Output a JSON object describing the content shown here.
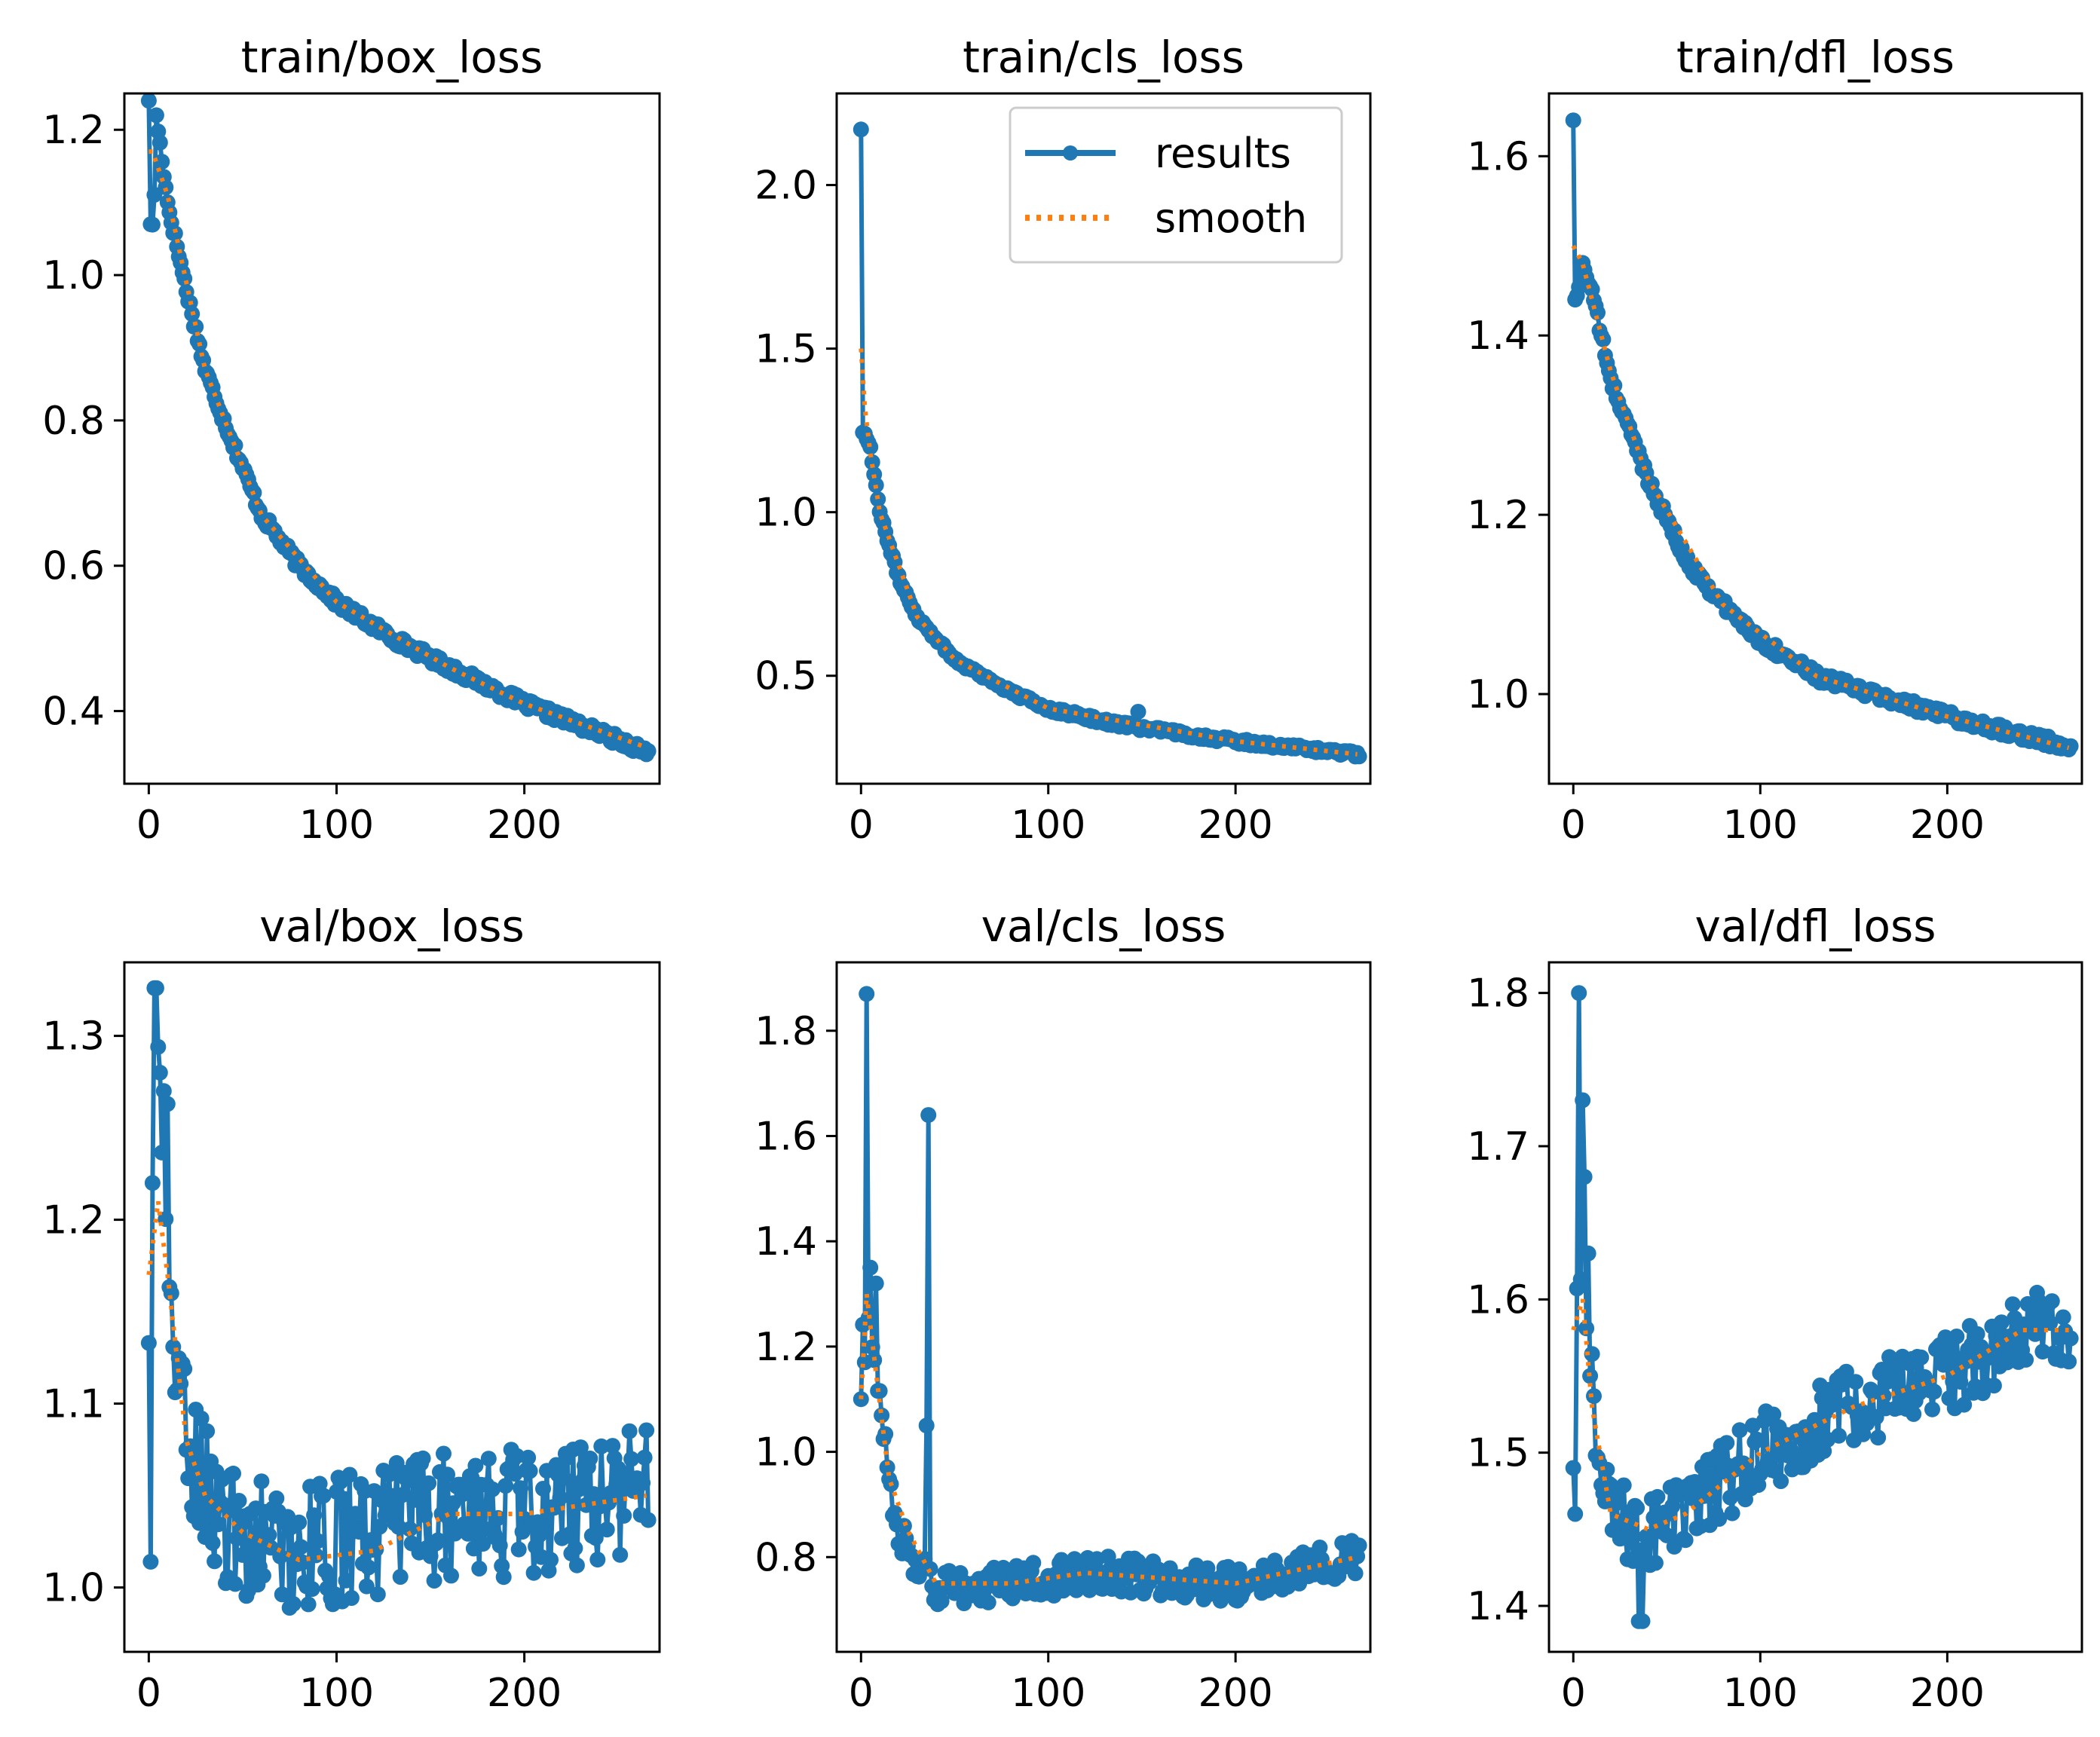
{
  "colors": {
    "results": "#1f77b4",
    "smooth": "#ff7f0e",
    "axes": "#000000",
    "background": "#ffffff",
    "legend_border": "#cccccc"
  },
  "legend": {
    "results_label": "results",
    "smooth_label": "smooth",
    "location": "upper right of train/cls_loss"
  },
  "chart_data": [
    {
      "type": "line",
      "title": "train/box_loss",
      "xlim": [
        -13,
        272
      ],
      "ylim": [
        0.3,
        1.25
      ],
      "xticks": [
        0,
        100,
        200
      ],
      "yticks": [
        0.4,
        0.6,
        0.8,
        1.0,
        1.2
      ],
      "xtick_labels": [
        "0",
        "100",
        "200"
      ],
      "ytick_labels": [
        "0.4",
        "0.6",
        "0.8",
        "1.0",
        "1.2"
      ],
      "key_x": [
        0,
        2,
        5,
        10,
        20,
        30,
        40,
        60,
        80,
        100,
        130,
        160,
        200,
        240,
        265
      ],
      "key_y": [
        1.24,
        1.07,
        1.2,
        1.1,
        0.98,
        0.87,
        0.8,
        0.67,
        0.6,
        0.55,
        0.5,
        0.46,
        0.41,
        0.37,
        0.345
      ],
      "noise": 0.007,
      "spikes": [
        [
          0,
          1.24
        ],
        [
          1,
          1.07
        ],
        [
          4,
          1.22
        ]
      ],
      "smooth_x": [
        2,
        10,
        30,
        60,
        100,
        160,
        200,
        265
      ],
      "smooth_y": [
        1.17,
        1.11,
        0.87,
        0.67,
        0.55,
        0.46,
        0.41,
        0.35
      ]
    },
    {
      "type": "line",
      "title": "train/cls_loss",
      "xlim": [
        -13,
        272
      ],
      "ylim": [
        0.17,
        2.28
      ],
      "xticks": [
        0,
        100,
        200
      ],
      "yticks": [
        0.5,
        1.0,
        1.5,
        2.0
      ],
      "xtick_labels": [
        "0",
        "100",
        "200"
      ],
      "ytick_labels": [
        "0.5",
        "1.0",
        "1.5",
        "2.0"
      ],
      "key_x": [
        0,
        1,
        5,
        10,
        20,
        30,
        50,
        80,
        100,
        130,
        150,
        200,
        265
      ],
      "key_y": [
        2.17,
        1.25,
        1.2,
        1.0,
        0.8,
        0.68,
        0.55,
        0.45,
        0.4,
        0.36,
        0.34,
        0.3,
        0.26
      ],
      "noise": 0.008,
      "spikes": [
        [
          0,
          2.17
        ],
        [
          148,
          0.39
        ]
      ],
      "smooth_x": [
        0,
        2,
        5,
        10,
        30,
        50,
        100,
        200,
        265
      ],
      "smooth_y": [
        1.5,
        1.32,
        1.18,
        1.0,
        0.68,
        0.55,
        0.4,
        0.3,
        0.26
      ]
    },
    {
      "type": "line",
      "title": "train/dfl_loss",
      "xlim": [
        -13,
        272
      ],
      "ylim": [
        0.9,
        1.67
      ],
      "xticks": [
        0,
        100,
        200
      ],
      "yticks": [
        1.0,
        1.2,
        1.4,
        1.6
      ],
      "xtick_labels": [
        "0",
        "100",
        "200"
      ],
      "ytick_labels": [
        "1.0",
        "1.2",
        "1.4",
        "1.6"
      ],
      "key_x": [
        0,
        2,
        5,
        10,
        20,
        40,
        60,
        80,
        100,
        130,
        160,
        200,
        240,
        265
      ],
      "key_y": [
        1.64,
        1.44,
        1.48,
        1.45,
        1.35,
        1.24,
        1.15,
        1.1,
        1.06,
        1.02,
        1.0,
        0.975,
        0.955,
        0.94
      ],
      "noise": 0.006,
      "spikes": [
        [
          0,
          1.64
        ],
        [
          1,
          1.44
        ]
      ],
      "smooth_x": [
        0,
        5,
        20,
        40,
        80,
        130,
        200,
        265
      ],
      "smooth_y": [
        1.5,
        1.48,
        1.36,
        1.24,
        1.1,
        1.02,
        0.975,
        0.94
      ]
    },
    {
      "type": "line",
      "title": "val/box_loss",
      "xlim": [
        -13,
        272
      ],
      "ylim": [
        0.965,
        1.34
      ],
      "xticks": [
        0,
        100,
        200
      ],
      "yticks": [
        1.0,
        1.1,
        1.2,
        1.3
      ],
      "xtick_labels": [
        "0",
        "100",
        "200"
      ],
      "ytick_labels": [
        "1.0",
        "1.1",
        "1.2",
        "1.3"
      ],
      "key_x": [
        0,
        3,
        5,
        8,
        10,
        15,
        20,
        30,
        40,
        80,
        120,
        160,
        200,
        265
      ],
      "key_y": [
        1.13,
        1.22,
        1.28,
        1.24,
        1.18,
        1.11,
        1.08,
        1.06,
        1.03,
        1.02,
        1.03,
        1.04,
        1.04,
        1.055
      ],
      "noise": 0.035,
      "spikes": [
        [
          0,
          1.133
        ],
        [
          1,
          1.014
        ],
        [
          2,
          1.22
        ],
        [
          3,
          1.326
        ],
        [
          4,
          1.326
        ],
        [
          6,
          1.28
        ],
        [
          8,
          1.27
        ],
        [
          10,
          1.263
        ],
        [
          12,
          1.16
        ]
      ],
      "smooth_x": [
        0,
        5,
        10,
        20,
        30,
        50,
        80,
        120,
        160,
        200,
        265
      ],
      "smooth_y": [
        1.17,
        1.21,
        1.17,
        1.08,
        1.05,
        1.03,
        1.015,
        1.02,
        1.04,
        1.04,
        1.05
      ]
    },
    {
      "type": "line",
      "title": "val/cls_loss",
      "xlim": [
        -13,
        272
      ],
      "ylim": [
        0.62,
        1.93
      ],
      "xticks": [
        0,
        100,
        200
      ],
      "yticks": [
        0.8,
        1.0,
        1.2,
        1.4,
        1.6,
        1.8
      ],
      "xtick_labels": [
        "0",
        "100",
        "200"
      ],
      "ytick_labels": [
        "0.8",
        "1.0",
        "1.2",
        "1.4",
        "1.6",
        "1.8"
      ],
      "key_x": [
        0,
        5,
        10,
        15,
        20,
        30,
        40,
        80,
        120,
        160,
        200,
        240,
        265
      ],
      "key_y": [
        1.2,
        1.25,
        1.1,
        0.95,
        0.85,
        0.78,
        0.74,
        0.75,
        0.77,
        0.76,
        0.75,
        0.78,
        0.8
      ],
      "noise": 0.035,
      "spikes": [
        [
          0,
          1.1
        ],
        [
          2,
          1.17
        ],
        [
          3,
          1.87
        ],
        [
          5,
          1.35
        ],
        [
          8,
          1.32
        ],
        [
          35,
          1.05
        ],
        [
          36,
          1.64
        ]
      ],
      "smooth_x": [
        0,
        3,
        8,
        15,
        25,
        40,
        80,
        120,
        160,
        200,
        265
      ],
      "smooth_y": [
        1.1,
        1.3,
        1.15,
        0.95,
        0.85,
        0.75,
        0.75,
        0.77,
        0.76,
        0.75,
        0.8
      ]
    },
    {
      "type": "line",
      "title": "val/dfl_loss",
      "xlim": [
        -13,
        272
      ],
      "ylim": [
        1.37,
        1.82
      ],
      "xticks": [
        0,
        100,
        200
      ],
      "yticks": [
        1.4,
        1.5,
        1.6,
        1.7,
        1.8
      ],
      "xtick_labels": [
        "0",
        "100",
        "200"
      ],
      "ytick_labels": [
        "1.4",
        "1.5",
        "1.6",
        "1.7",
        "1.8"
      ],
      "key_x": [
        0,
        5,
        10,
        15,
        20,
        30,
        40,
        60,
        100,
        150,
        200,
        240,
        265
      ],
      "key_y": [
        1.6,
        1.62,
        1.55,
        1.48,
        1.46,
        1.45,
        1.45,
        1.46,
        1.5,
        1.53,
        1.55,
        1.58,
        1.58
      ],
      "noise": 0.026,
      "spikes": [
        [
          0,
          1.49
        ],
        [
          1,
          1.46
        ],
        [
          3,
          1.8
        ],
        [
          5,
          1.73
        ],
        [
          6,
          1.68
        ],
        [
          8,
          1.63
        ],
        [
          35,
          1.39
        ],
        [
          37,
          1.39
        ]
      ],
      "smooth_x": [
        0,
        5,
        10,
        20,
        40,
        60,
        100,
        150,
        200,
        240,
        265
      ],
      "smooth_y": [
        1.58,
        1.6,
        1.53,
        1.46,
        1.45,
        1.46,
        1.5,
        1.53,
        1.55,
        1.58,
        1.58
      ]
    }
  ]
}
